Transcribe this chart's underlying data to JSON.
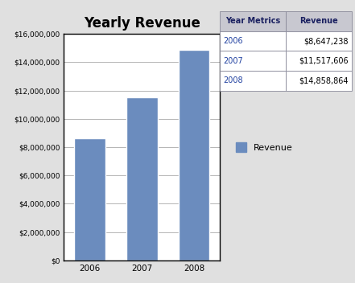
{
  "title": "Yearly Revenue",
  "years": [
    "2006",
    "2007",
    "2008"
  ],
  "values": [
    8647238,
    11517606,
    14858864
  ],
  "bar_color": "#6b8cbe",
  "ylim": [
    0,
    16000000
  ],
  "yticks": [
    0,
    2000000,
    4000000,
    6000000,
    8000000,
    10000000,
    12000000,
    14000000,
    16000000
  ],
  "background_color": "#e0e0e0",
  "chart_bg": "#ffffff",
  "title_fontsize": 12,
  "legend_label": "Revenue",
  "table_headers": [
    "Year Metrics",
    "Revenue"
  ],
  "table_years": [
    "2006",
    "2007",
    "2008"
  ],
  "table_revenues": [
    "$8,647,238",
    "$11,517,606",
    "$14,858,864"
  ],
  "table_header_bg": "#c8c8d0",
  "table_header_text_color": "#1a2060",
  "table_year_text_color": "#2040a0",
  "table_revenue_text_color": "#000000",
  "table_row_bg": "#ffffff",
  "table_border_color": "#888898"
}
